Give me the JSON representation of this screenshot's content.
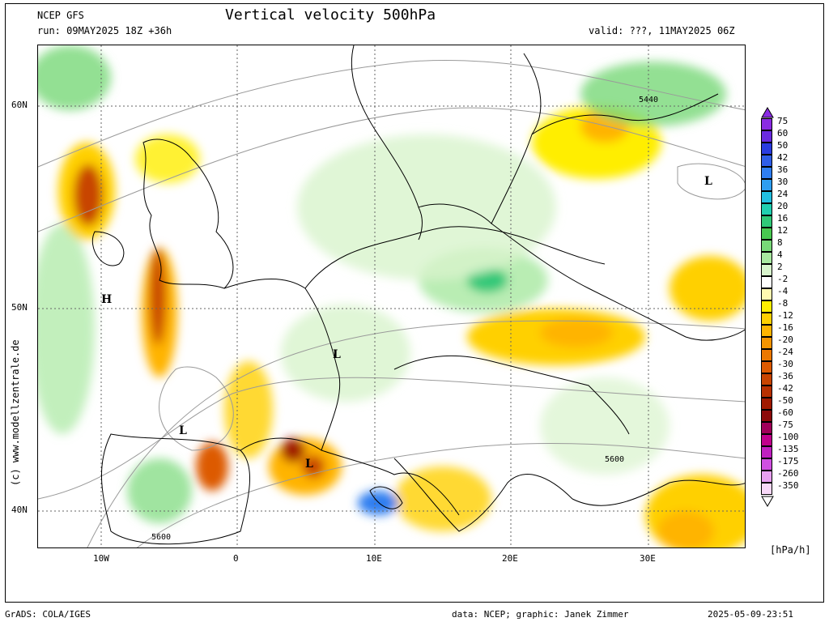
{
  "header": {
    "model": "NCEP GFS",
    "run": "run: 09MAY2025 18Z +36h",
    "title": "Vertical velocity 500hPa",
    "valid": "valid: ???, 11MAY2025 06Z"
  },
  "footer": {
    "left": "GrADS: COLA/IGES",
    "center": "data: NCEP; graphic: Janek Zimmer",
    "right": "2025-05-09-23:51"
  },
  "credit": "(c) www.modellzentrale.de",
  "units": "[hPa/h]",
  "lat_labels": [
    "60N",
    "50N",
    "40N"
  ],
  "lon_labels": [
    "10W",
    "0",
    "10E",
    "20E",
    "30E"
  ],
  "map_markers": [
    {
      "symbol": "H"
    },
    {
      "symbol": "L"
    },
    {
      "symbol": "L"
    },
    {
      "symbol": "L"
    },
    {
      "symbol": "L"
    }
  ],
  "contour_labels": [
    "5440",
    "5600",
    "5600"
  ],
  "colorbar": {
    "labels": [
      "75",
      "60",
      "50",
      "42",
      "36",
      "30",
      "24",
      "20",
      "16",
      "12",
      "8",
      "4",
      "2",
      "-2",
      "-4",
      "-8",
      "-12",
      "-16",
      "-20",
      "-24",
      "-30",
      "-36",
      "-42",
      "-50",
      "-60",
      "-75",
      "-100",
      "-135",
      "-175",
      "-260",
      "-350"
    ],
    "colors": [
      "#8a2be2",
      "#6a2be0",
      "#2a3ce0",
      "#2f5ee8",
      "#2f7ef0",
      "#2f9ef0",
      "#22bfe0",
      "#20cfb0",
      "#30c878",
      "#48c850",
      "#78d878",
      "#a8e8a0",
      "#d8f4cc",
      "#ffffff",
      "#fff8b0",
      "#ffee00",
      "#ffd000",
      "#ffb400",
      "#f49400",
      "#ec7800",
      "#dd5a00",
      "#c84400",
      "#b83000",
      "#a01a00",
      "#8c0a0a",
      "#a0005a",
      "#c0008c",
      "#c020c0",
      "#d050e0",
      "#e8a0f0",
      "#f8d8f8"
    ],
    "top_arrow_color": "#8a2be2",
    "bottom_arrow_color": "#ffffff"
  }
}
